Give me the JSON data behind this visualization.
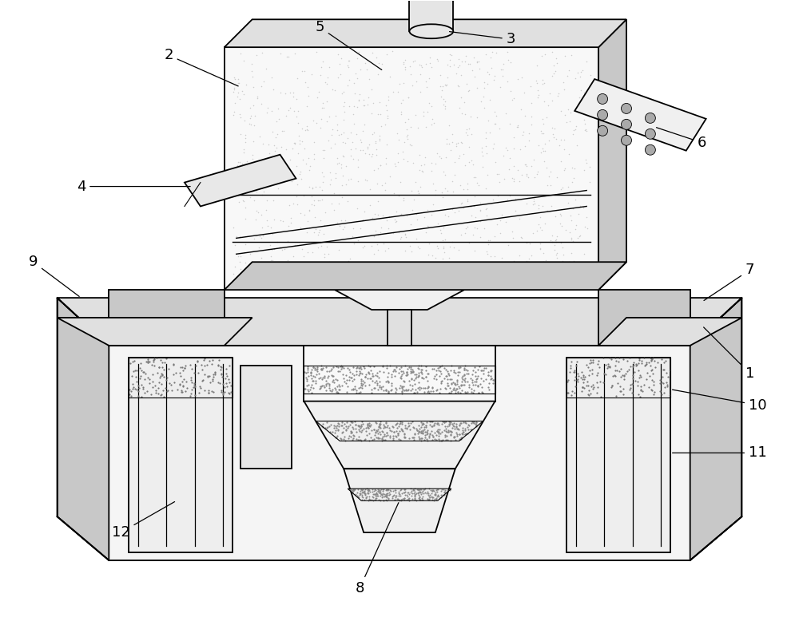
{
  "bg_color": "#ffffff",
  "lc": "#000000",
  "lw": 1.3,
  "gray_light": "#f2f2f2",
  "gray_mid": "#e0e0e0",
  "gray_dark": "#c8c8c8",
  "gray_darker": "#b8b8b8",
  "dot_color": "#999999",
  "white": "#ffffff"
}
